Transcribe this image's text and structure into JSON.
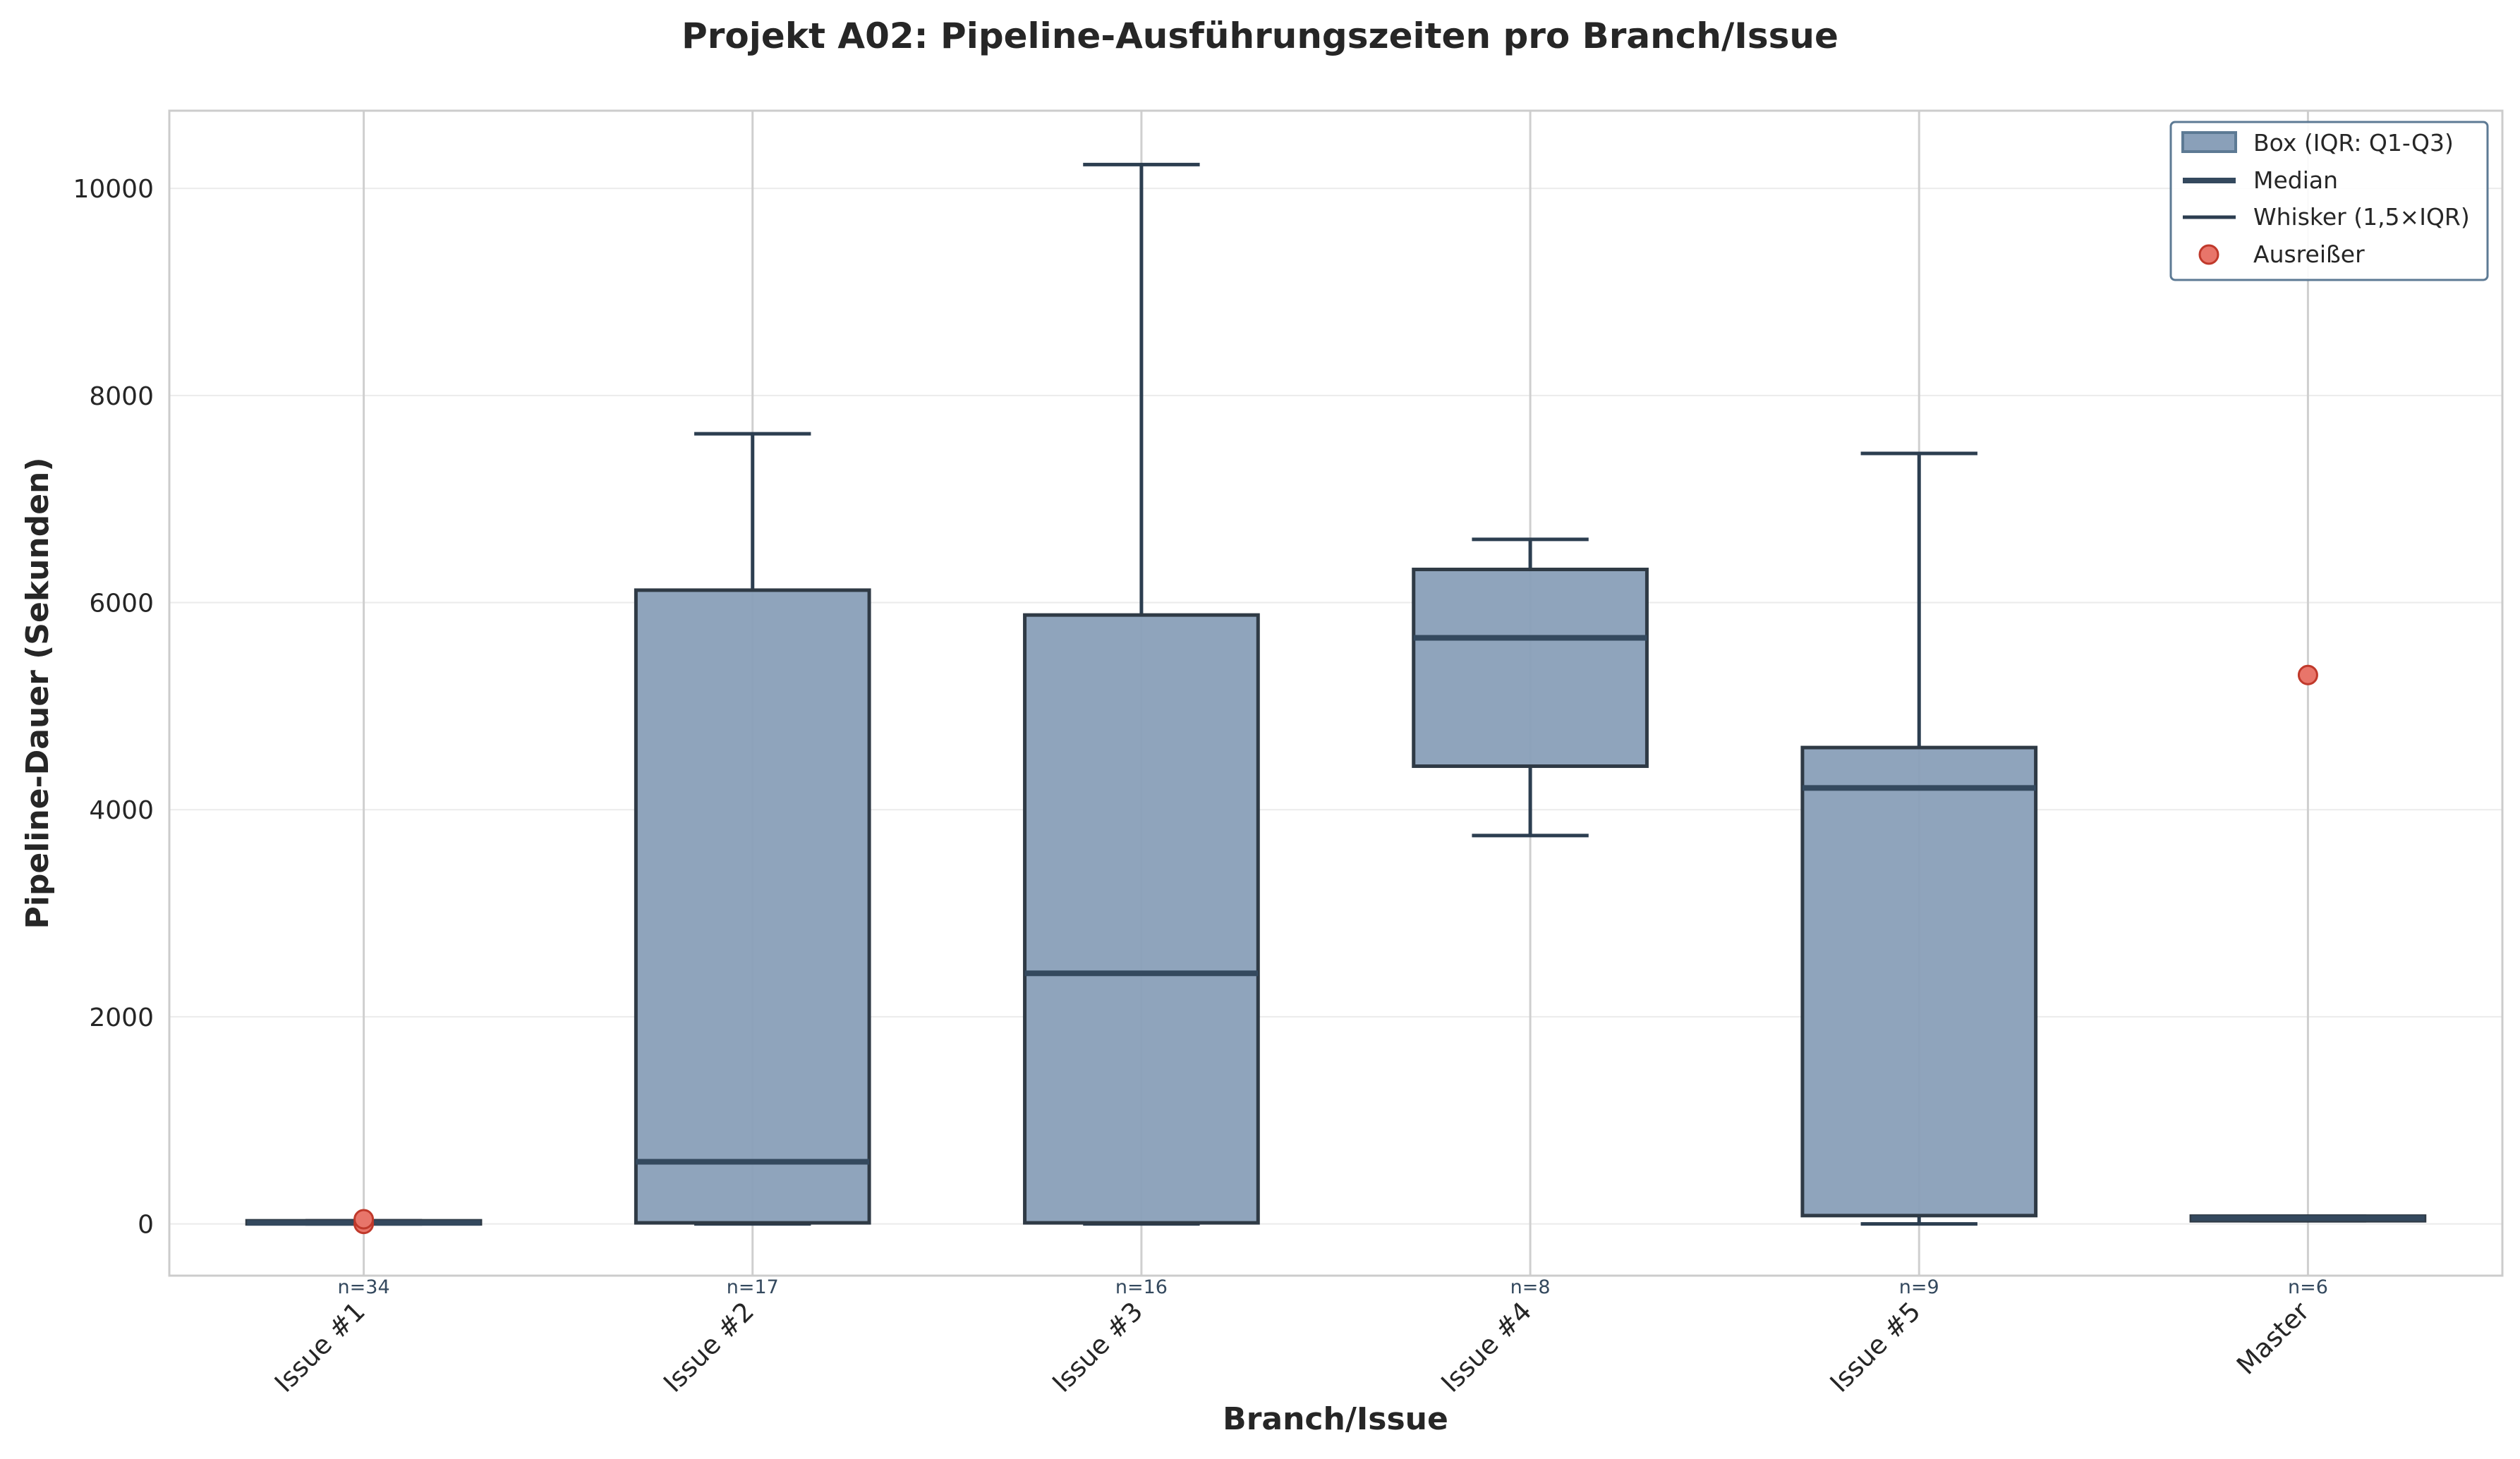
{
  "chart_data": {
    "type": "boxplot",
    "title": "Projekt A02: Pipeline-Ausführungszeiten pro Branch/Issue",
    "xlabel": "Branch/Issue",
    "ylabel": "Pipeline-Dauer (Sekunden)",
    "ylim": [
      -500,
      10750
    ],
    "yticks": [
      0,
      2000,
      4000,
      6000,
      8000,
      10000
    ],
    "grid": true,
    "legend_position": "top-right",
    "legend": [
      {
        "kind": "box",
        "label": "Box (IQR: Q1-Q3)"
      },
      {
        "kind": "median",
        "label": "Median"
      },
      {
        "kind": "whisker",
        "label": "Whisker (1,5×IQR)"
      },
      {
        "kind": "outlier",
        "label": "Ausreißer"
      }
    ],
    "colors": {
      "box_fill": "#8aa0b9",
      "box_edge": "#2f3a45",
      "median": "#34495e",
      "whisker": "#2c3e50",
      "outlier_fill": "#e8756a",
      "outlier_edge": "#c0392b",
      "count_label": "#34495e"
    },
    "categories": [
      "Issue #1",
      "Issue #2",
      "Issue #3",
      "Issue #4",
      "Issue #5",
      "Master"
    ],
    "counts": [
      "n=34",
      "n=17",
      "n=16",
      "n=8",
      "n=9",
      "n=6"
    ],
    "boxes": [
      {
        "whislo": 0,
        "q1": 0,
        "med": 10,
        "q3": 30,
        "whishi": 30,
        "fliers": [
          0,
          45
        ]
      },
      {
        "whislo": 0,
        "q1": 10,
        "med": 600,
        "q3": 6120,
        "whishi": 7630,
        "fliers": []
      },
      {
        "whislo": 0,
        "q1": 10,
        "med": 2420,
        "q3": 5880,
        "whishi": 10230,
        "fliers": []
      },
      {
        "whislo": 3750,
        "q1": 4420,
        "med": 5660,
        "q3": 6320,
        "whishi": 6610,
        "fliers": []
      },
      {
        "whislo": 0,
        "q1": 80,
        "med": 4210,
        "q3": 4600,
        "whishi": 7440,
        "fliers": []
      },
      {
        "whislo": 30,
        "q1": 30,
        "med": 55,
        "q3": 75,
        "whishi": 75,
        "fliers": [
          5300
        ]
      }
    ]
  }
}
